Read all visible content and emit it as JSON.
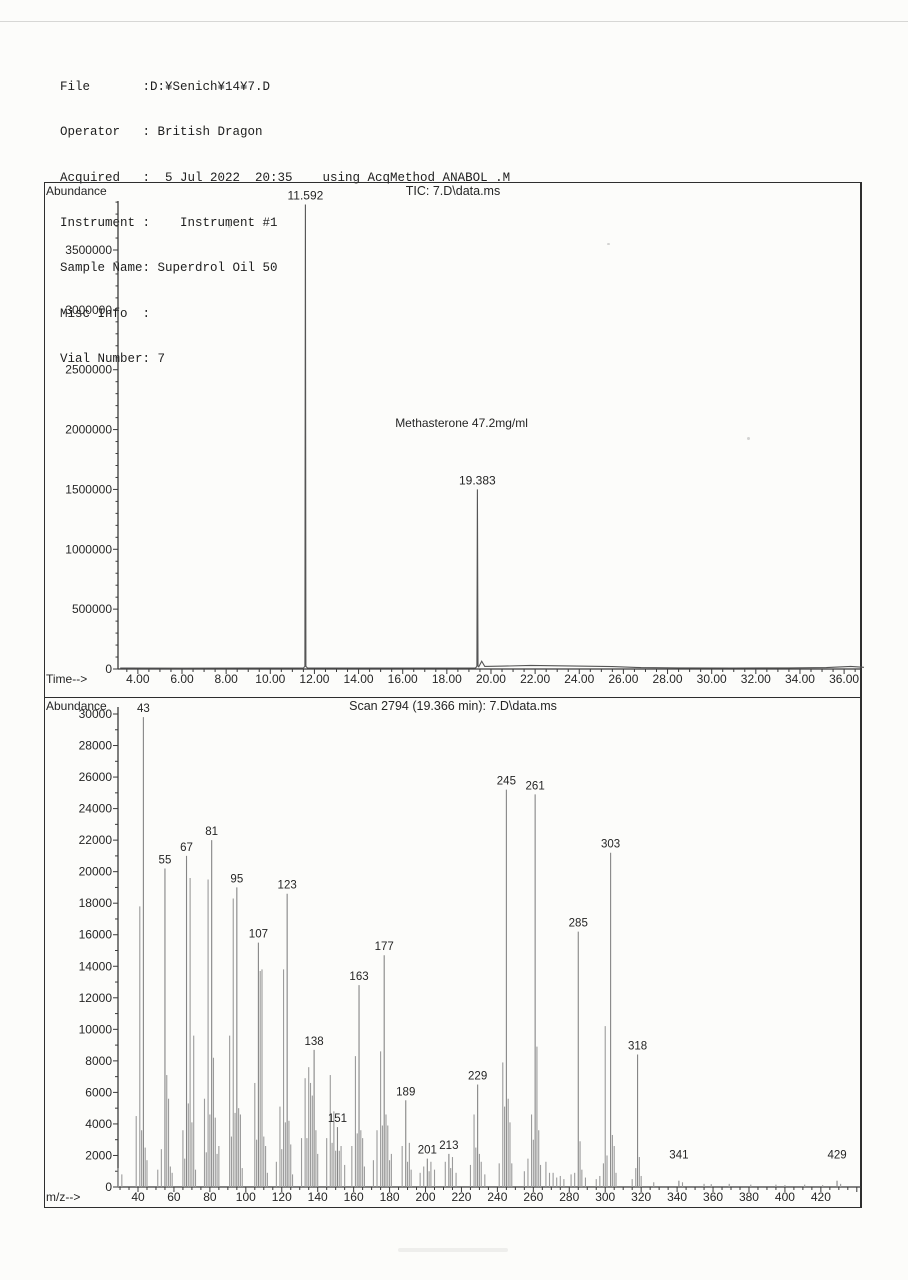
{
  "page": {
    "background": "#fcfcfa",
    "ink": "#1d1d1d",
    "trace_color": "#555555",
    "stick_color": "#9b9b9b",
    "stick_labeled_color": "#858585",
    "axis_color": "#3a3a3a"
  },
  "header": {
    "lines": [
      "File       :D:¥Senich¥14¥7.D",
      "Operator   : British Dragon",
      "Acquired   :  5 Jul 2022  20:35    using AcqMethod ANABOL .M",
      "Instrument :    Instrument #1",
      "Sample Name: Superdrol Oil 50",
      "Misc Info  :",
      "Vial Number: 7"
    ]
  },
  "chart_data": [
    {
      "type": "line",
      "name": "tic-chromatogram",
      "title": "TIC: 7.D\\data.ms",
      "ylabel": "Abundance",
      "xlabel": "Time-->",
      "xlim": [
        3.1,
        37.0
      ],
      "ylim": [
        0,
        3900000
      ],
      "xticks": [
        4,
        6,
        8,
        10,
        12,
        14,
        16,
        18,
        20,
        22,
        24,
        26,
        28,
        30,
        32,
        34,
        36
      ],
      "yticks": [
        0,
        500000,
        1000000,
        1500000,
        2000000,
        2500000,
        3000000,
        3500000
      ],
      "grid": false,
      "peaks": [
        {
          "x": 11.592,
          "y": 3880000,
          "label": "11.592"
        },
        {
          "x": 19.383,
          "y": 1500000,
          "label": "19.383"
        }
      ],
      "annotation": {
        "text": "Methasterone  47.2mg/ml",
        "x": 15.66,
        "y": 2020000
      },
      "baseline": [
        [
          3.2,
          8000
        ],
        [
          6.0,
          7000
        ],
        [
          9.0,
          8000
        ],
        [
          11.5,
          8000
        ],
        [
          11.57,
          22000
        ],
        [
          11.592,
          3880000
        ],
        [
          11.615,
          22000
        ],
        [
          11.68,
          9000
        ],
        [
          14.0,
          8000
        ],
        [
          17.0,
          8000
        ],
        [
          19.3,
          9000
        ],
        [
          19.36,
          22000
        ],
        [
          19.383,
          1500000
        ],
        [
          19.41,
          26000
        ],
        [
          19.45,
          18000
        ],
        [
          19.58,
          65000
        ],
        [
          19.72,
          22000
        ],
        [
          20.6,
          24000
        ],
        [
          21.8,
          30000
        ],
        [
          23.5,
          26000
        ],
        [
          25.5,
          20000
        ],
        [
          26.8,
          12000
        ],
        [
          28.5,
          9000
        ],
        [
          31.0,
          8000
        ],
        [
          33.5,
          9000
        ],
        [
          35.2,
          12000
        ],
        [
          36.3,
          22000
        ],
        [
          36.9,
          14000
        ]
      ]
    },
    {
      "type": "stick",
      "name": "mass-spectrum",
      "title": "Scan 2794 (19.366 min): 7.D\\data.ms",
      "ylabel": "Abundance",
      "xlabel": "m/z-->",
      "xlim": [
        28,
        442
      ],
      "ylim": [
        0,
        31000
      ],
      "xticks": [
        40,
        60,
        80,
        100,
        120,
        140,
        160,
        180,
        200,
        220,
        240,
        260,
        280,
        300,
        320,
        340,
        360,
        380,
        400,
        420
      ],
      "yticks": [
        0,
        2000,
        4000,
        6000,
        8000,
        10000,
        12000,
        14000,
        16000,
        18000,
        20000,
        22000,
        24000,
        26000,
        28000,
        30000
      ],
      "grid": false,
      "peaks": [
        [
          29,
          1200
        ],
        [
          31,
          800
        ],
        [
          39,
          4500
        ],
        [
          41,
          17800
        ],
        [
          42,
          3600
        ],
        [
          43,
          29800
        ],
        [
          44,
          2500
        ],
        [
          45,
          1700
        ],
        [
          51,
          1100
        ],
        [
          53,
          2400
        ],
        [
          55,
          20200
        ],
        [
          56,
          7100
        ],
        [
          57,
          5600
        ],
        [
          58,
          1300
        ],
        [
          59,
          900
        ],
        [
          65,
          3600
        ],
        [
          66,
          1800
        ],
        [
          67,
          21000
        ],
        [
          68,
          5300
        ],
        [
          69,
          19600
        ],
        [
          70,
          4100
        ],
        [
          71,
          9600
        ],
        [
          72,
          1100
        ],
        [
          77,
          5600
        ],
        [
          78,
          2200
        ],
        [
          79,
          19500
        ],
        [
          80,
          4600
        ],
        [
          81,
          22000
        ],
        [
          82,
          8200
        ],
        [
          83,
          4400
        ],
        [
          84,
          2100
        ],
        [
          85,
          2600
        ],
        [
          91,
          9600
        ],
        [
          92,
          3200
        ],
        [
          93,
          18300
        ],
        [
          94,
          4700
        ],
        [
          95,
          19000
        ],
        [
          96,
          5000
        ],
        [
          97,
          4600
        ],
        [
          98,
          1200
        ],
        [
          105,
          6600
        ],
        [
          106,
          3000
        ],
        [
          107,
          15500
        ],
        [
          108,
          13700
        ],
        [
          109,
          13800
        ],
        [
          110,
          3200
        ],
        [
          111,
          2600
        ],
        [
          112,
          900
        ],
        [
          117,
          1600
        ],
        [
          119,
          5100
        ],
        [
          120,
          2400
        ],
        [
          121,
          13800
        ],
        [
          122,
          4100
        ],
        [
          123,
          18600
        ],
        [
          124,
          4200
        ],
        [
          125,
          2700
        ],
        [
          126,
          800
        ],
        [
          131,
          3100
        ],
        [
          133,
          6900
        ],
        [
          134,
          3100
        ],
        [
          135,
          7600
        ],
        [
          136,
          6600
        ],
        [
          137,
          5800
        ],
        [
          138,
          8700
        ],
        [
          139,
          3600
        ],
        [
          140,
          2100
        ],
        [
          145,
          3100
        ],
        [
          147,
          7100
        ],
        [
          148,
          2800
        ],
        [
          149,
          4800
        ],
        [
          150,
          2300
        ],
        [
          151,
          3800
        ],
        [
          152,
          2300
        ],
        [
          153,
          2600
        ],
        [
          155,
          1400
        ],
        [
          159,
          2600
        ],
        [
          161,
          8300
        ],
        [
          162,
          3400
        ],
        [
          163,
          12800
        ],
        [
          164,
          3600
        ],
        [
          165,
          3100
        ],
        [
          166,
          1300
        ],
        [
          171,
          1700
        ],
        [
          173,
          3600
        ],
        [
          175,
          8600
        ],
        [
          176,
          3900
        ],
        [
          177,
          14700
        ],
        [
          178,
          4600
        ],
        [
          179,
          3900
        ],
        [
          180,
          1700
        ],
        [
          181,
          2100
        ],
        [
          187,
          2600
        ],
        [
          189,
          5500
        ],
        [
          190,
          1600
        ],
        [
          191,
          2800
        ],
        [
          192,
          1100
        ],
        [
          197,
          900
        ],
        [
          199,
          1300
        ],
        [
          201,
          1800
        ],
        [
          202,
          1000
        ],
        [
          203,
          1600
        ],
        [
          205,
          1100
        ],
        [
          211,
          1600
        ],
        [
          213,
          2100
        ],
        [
          214,
          1200
        ],
        [
          215,
          1900
        ],
        [
          217,
          900
        ],
        [
          225,
          1400
        ],
        [
          227,
          4600
        ],
        [
          228,
          2500
        ],
        [
          229,
          6500
        ],
        [
          230,
          2100
        ],
        [
          231,
          1600
        ],
        [
          233,
          800
        ],
        [
          241,
          1500
        ],
        [
          243,
          7900
        ],
        [
          244,
          5100
        ],
        [
          245,
          25200
        ],
        [
          246,
          5600
        ],
        [
          247,
          4100
        ],
        [
          248,
          1500
        ],
        [
          255,
          1000
        ],
        [
          257,
          1800
        ],
        [
          259,
          4600
        ],
        [
          260,
          3000
        ],
        [
          261,
          24900
        ],
        [
          262,
          8900
        ],
        [
          263,
          3600
        ],
        [
          264,
          1400
        ],
        [
          267,
          1600
        ],
        [
          269,
          900
        ],
        [
          271,
          900
        ],
        [
          273,
          600
        ],
        [
          275,
          700
        ],
        [
          277,
          500
        ],
        [
          281,
          800
        ],
        [
          283,
          900
        ],
        [
          285,
          16200
        ],
        [
          286,
          2900
        ],
        [
          287,
          1100
        ],
        [
          289,
          600
        ],
        [
          295,
          500
        ],
        [
          297,
          700
        ],
        [
          299,
          1500
        ],
        [
          300,
          10200
        ],
        [
          301,
          2000
        ],
        [
          303,
          21200
        ],
        [
          304,
          3300
        ],
        [
          305,
          2600
        ],
        [
          306,
          900
        ],
        [
          315,
          500
        ],
        [
          317,
          1200
        ],
        [
          318,
          8400
        ],
        [
          319,
          1900
        ],
        [
          320,
          700
        ],
        [
          327,
          300
        ],
        [
          341,
          400
        ],
        [
          343,
          300
        ],
        [
          355,
          200
        ],
        [
          359,
          180
        ],
        [
          369,
          200
        ],
        [
          381,
          150
        ],
        [
          395,
          150
        ],
        [
          400,
          120
        ],
        [
          411,
          150
        ],
        [
          421,
          120
        ],
        [
          429,
          400
        ],
        [
          431,
          200
        ]
      ],
      "labels": [
        {
          "mz": 43,
          "text": "43"
        },
        {
          "mz": 55,
          "text": "55"
        },
        {
          "mz": 67,
          "text": "67"
        },
        {
          "mz": 81,
          "text": "81"
        },
        {
          "mz": 95,
          "text": "95"
        },
        {
          "mz": 107,
          "text": "107"
        },
        {
          "mz": 123,
          "text": "123"
        },
        {
          "mz": 138,
          "text": "138"
        },
        {
          "mz": 151,
          "text": "151"
        },
        {
          "mz": 163,
          "text": "163"
        },
        {
          "mz": 177,
          "text": "177"
        },
        {
          "mz": 189,
          "text": "189"
        },
        {
          "mz": 201,
          "text": "201"
        },
        {
          "mz": 213,
          "text": "213"
        },
        {
          "mz": 229,
          "text": "229"
        },
        {
          "mz": 245,
          "text": "245"
        },
        {
          "mz": 261,
          "text": "261"
        },
        {
          "mz": 285,
          "text": "285"
        },
        {
          "mz": 303,
          "text": "303"
        },
        {
          "mz": 318,
          "text": "318"
        },
        {
          "mz": 341,
          "text": "341",
          "y": 1500
        },
        {
          "mz": 429,
          "text": "429",
          "y": 1500
        }
      ]
    }
  ]
}
